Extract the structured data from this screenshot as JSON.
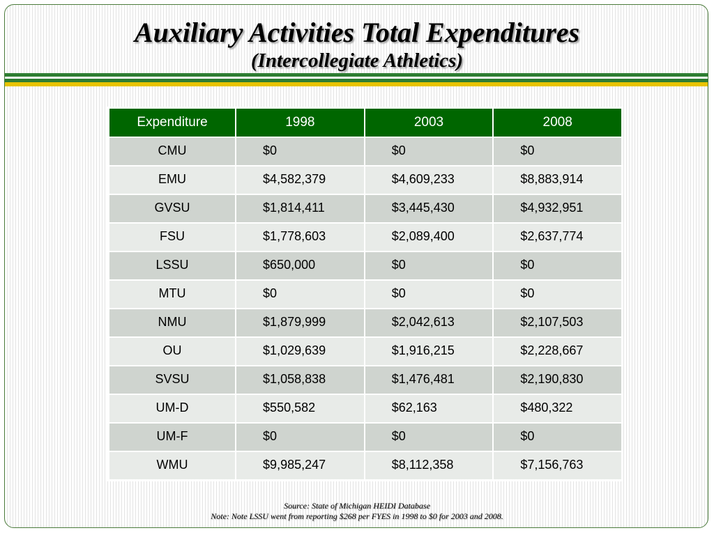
{
  "slide": {
    "title": "Auxiliary Activities Total Expenditures",
    "subtitle": "(Intercollegiate Athletics)"
  },
  "table": {
    "headers": [
      "Expenditure",
      "1998",
      "2003",
      "2008"
    ],
    "rows": [
      [
        "CMU",
        "$0",
        "$0",
        "$0"
      ],
      [
        "EMU",
        "$4,582,379",
        "$4,609,233",
        "$8,883,914"
      ],
      [
        "GVSU",
        "$1,814,411",
        "$3,445,430",
        "$4,932,951"
      ],
      [
        "FSU",
        "$1,778,603",
        "$2,089,400",
        "$2,637,774"
      ],
      [
        "LSSU",
        "$650,000",
        "$0",
        "$0"
      ],
      [
        "MTU",
        "$0",
        "$0",
        "$0"
      ],
      [
        "NMU",
        "$1,879,999",
        "$2,042,613",
        "$2,107,503"
      ],
      [
        "OU",
        "$1,029,639",
        "$1,916,215",
        "$2,228,667"
      ],
      [
        "SVSU",
        "$1,058,838",
        "$1,476,481",
        "$2,190,830"
      ],
      [
        "UM-D",
        "$550,582",
        "$62,163",
        "$480,322"
      ],
      [
        "UM-F",
        "$0",
        "$0",
        "$0"
      ],
      [
        "WMU",
        "$9,985,247",
        "$8,112,358",
        "$7,156,763"
      ]
    ]
  },
  "footer": {
    "source": "Source:  State of Michigan HEIDI Database",
    "note": "Note:  Note LSSU went from reporting $268 per FYES in 1998 to $0 for 2003 and 2008."
  },
  "colors": {
    "header_green": "#006600",
    "stripe_green": "#2e7d32",
    "stripe_yellow": "#e8c300",
    "row_dark": "#cfd4cf",
    "row_light": "#e8ebe8"
  }
}
